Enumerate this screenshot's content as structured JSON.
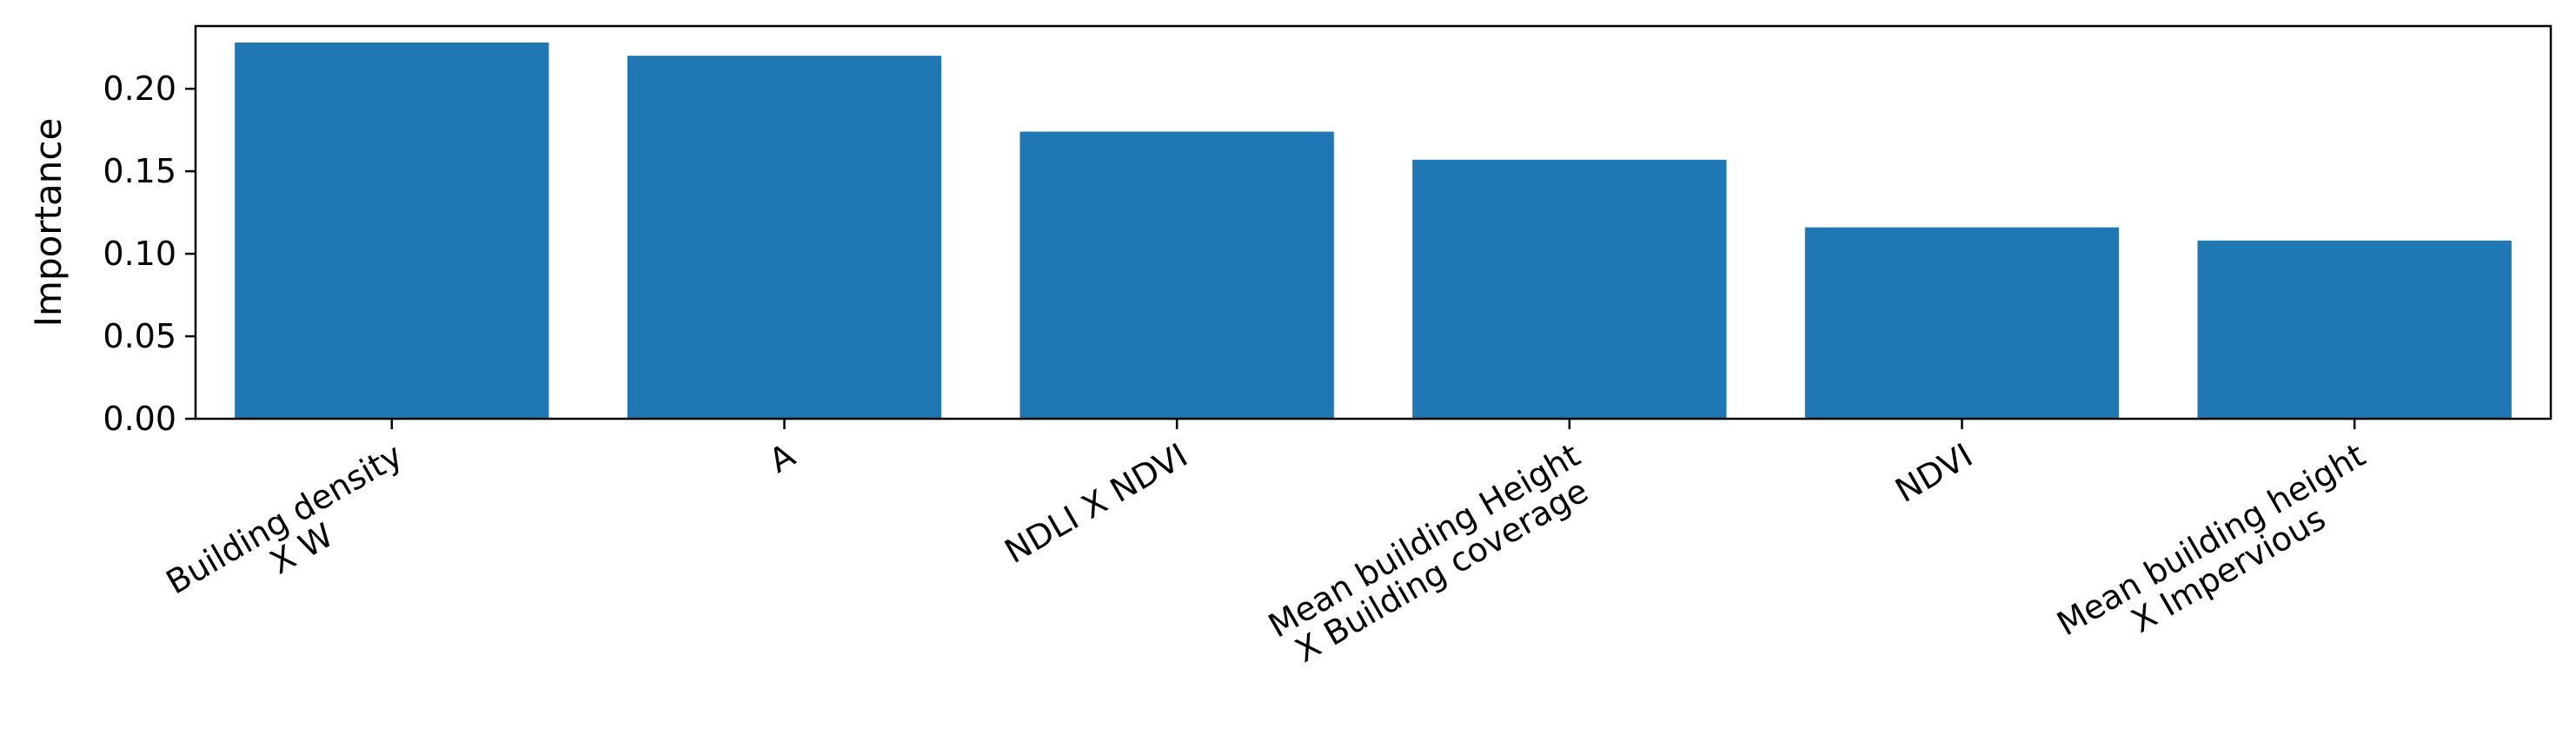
{
  "chart_data": {
    "type": "bar",
    "title": "",
    "xlabel": "",
    "ylabel": "Importance",
    "categories": [
      [
        "Building density",
        "X W"
      ],
      [
        "A"
      ],
      [
        "NDLI X NDVI"
      ],
      [
        "Mean building Height",
        "X Building coverage"
      ],
      [
        "NDVI"
      ],
      [
        "Mean building height",
        "X Impervious"
      ]
    ],
    "values": [
      0.228,
      0.22,
      0.174,
      0.157,
      0.116,
      0.108
    ],
    "ylim": [
      0,
      0.238
    ],
    "yticks": [
      0.0,
      0.05,
      0.1,
      0.15,
      0.2
    ],
    "ytick_labels": [
      "0.00",
      "0.05",
      "0.10",
      "0.15",
      "0.20"
    ],
    "bar_color": "#1f77b4",
    "grid": false,
    "x_tick_rotation_deg": 30
  }
}
